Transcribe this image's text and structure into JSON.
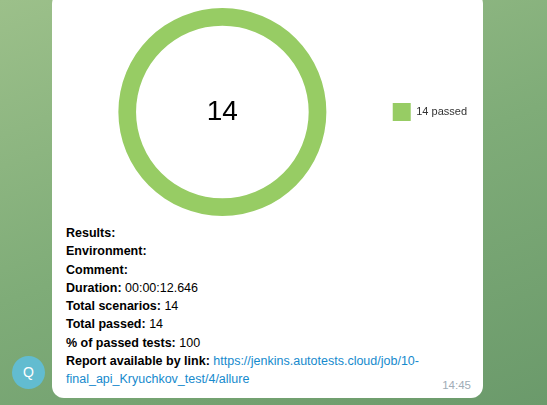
{
  "chart_data": {
    "type": "doughnut",
    "categories": [
      "14 passed"
    ],
    "values": [
      14
    ],
    "colors": [
      "#97cc64"
    ],
    "legend": "right",
    "annotations": [
      "14"
    ]
  },
  "message": {
    "lines": [
      {
        "label": "Results:"
      },
      {
        "label": "Environment:"
      },
      {
        "label": "Comment:"
      },
      {
        "label": "Duration:",
        "value": "00:00:12.646"
      },
      {
        "label": "Total scenarios:",
        "value": 14
      },
      {
        "label": "Total passed:",
        "value": 14
      },
      {
        "label": "% of passed tests:",
        "value": 100
      },
      {
        "label": "Report available by link:",
        "link": "https://jenkins.autotests.cloud/job/10-final_api_Kryuchkov_test/4/allure"
      }
    ],
    "time": "14:45",
    "avatar": "Q"
  }
}
